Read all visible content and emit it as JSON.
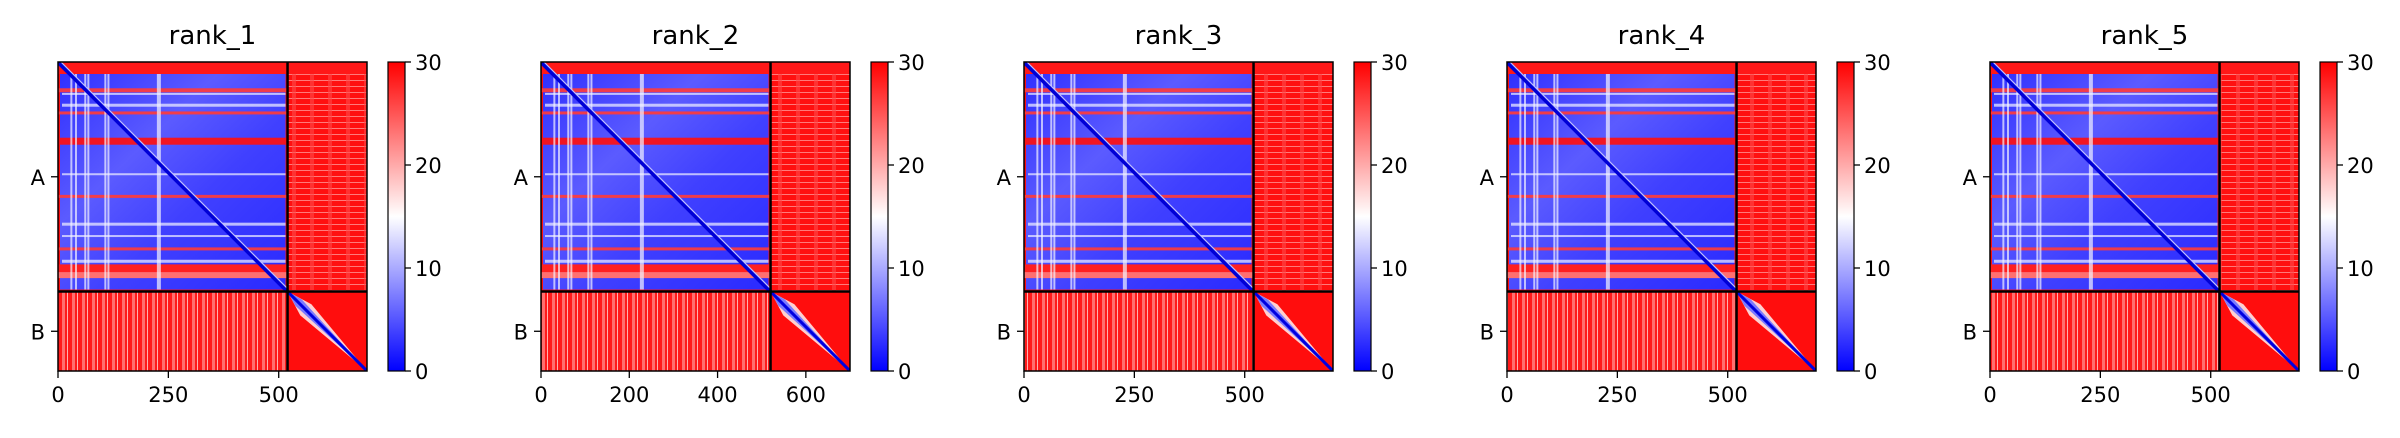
{
  "figure": {
    "colors": {
      "low": "#0000ff",
      "mid": "#ffffff",
      "high": "#ff0000",
      "frame": "#000000"
    }
  },
  "chart_data": [
    {
      "type": "heatmap",
      "title": "rank_1",
      "xlabel": "",
      "ylabel": "",
      "x_ticks": [
        "0",
        "250",
        "500"
      ],
      "y_labels": [
        "A",
        "B"
      ],
      "chain_boundary": 520,
      "axis_range": [
        0,
        700
      ],
      "colorbar": {
        "min": 0,
        "max": 30,
        "ticks": [
          "0",
          "10",
          "20",
          "30"
        ]
      }
    },
    {
      "type": "heatmap",
      "title": "rank_2",
      "xlabel": "",
      "ylabel": "",
      "x_ticks": [
        "0",
        "200",
        "400",
        "600"
      ],
      "y_labels": [
        "A",
        "B"
      ],
      "chain_boundary": 520,
      "axis_range": [
        0,
        700
      ],
      "colorbar": {
        "min": 0,
        "max": 30,
        "ticks": [
          "0",
          "10",
          "20",
          "30"
        ]
      }
    },
    {
      "type": "heatmap",
      "title": "rank_3",
      "xlabel": "",
      "ylabel": "",
      "x_ticks": [
        "0",
        "250",
        "500"
      ],
      "y_labels": [
        "A",
        "B"
      ],
      "chain_boundary": 520,
      "axis_range": [
        0,
        700
      ],
      "colorbar": {
        "min": 0,
        "max": 30,
        "ticks": [
          "0",
          "10",
          "20",
          "30"
        ]
      }
    },
    {
      "type": "heatmap",
      "title": "rank_4",
      "xlabel": "",
      "ylabel": "",
      "x_ticks": [
        "0",
        "250",
        "500"
      ],
      "y_labels": [
        "A",
        "B"
      ],
      "chain_boundary": 520,
      "axis_range": [
        0,
        700
      ],
      "colorbar": {
        "min": 0,
        "max": 30,
        "ticks": [
          "0",
          "10",
          "20",
          "30"
        ]
      }
    },
    {
      "type": "heatmap",
      "title": "rank_5",
      "xlabel": "",
      "ylabel": "",
      "x_ticks": [
        "0",
        "250",
        "500"
      ],
      "y_labels": [
        "A",
        "B"
      ],
      "chain_boundary": 520,
      "axis_range": [
        0,
        700
      ],
      "colorbar": {
        "min": 0,
        "max": 30,
        "ticks": [
          "0",
          "10",
          "20",
          "30"
        ]
      }
    }
  ]
}
